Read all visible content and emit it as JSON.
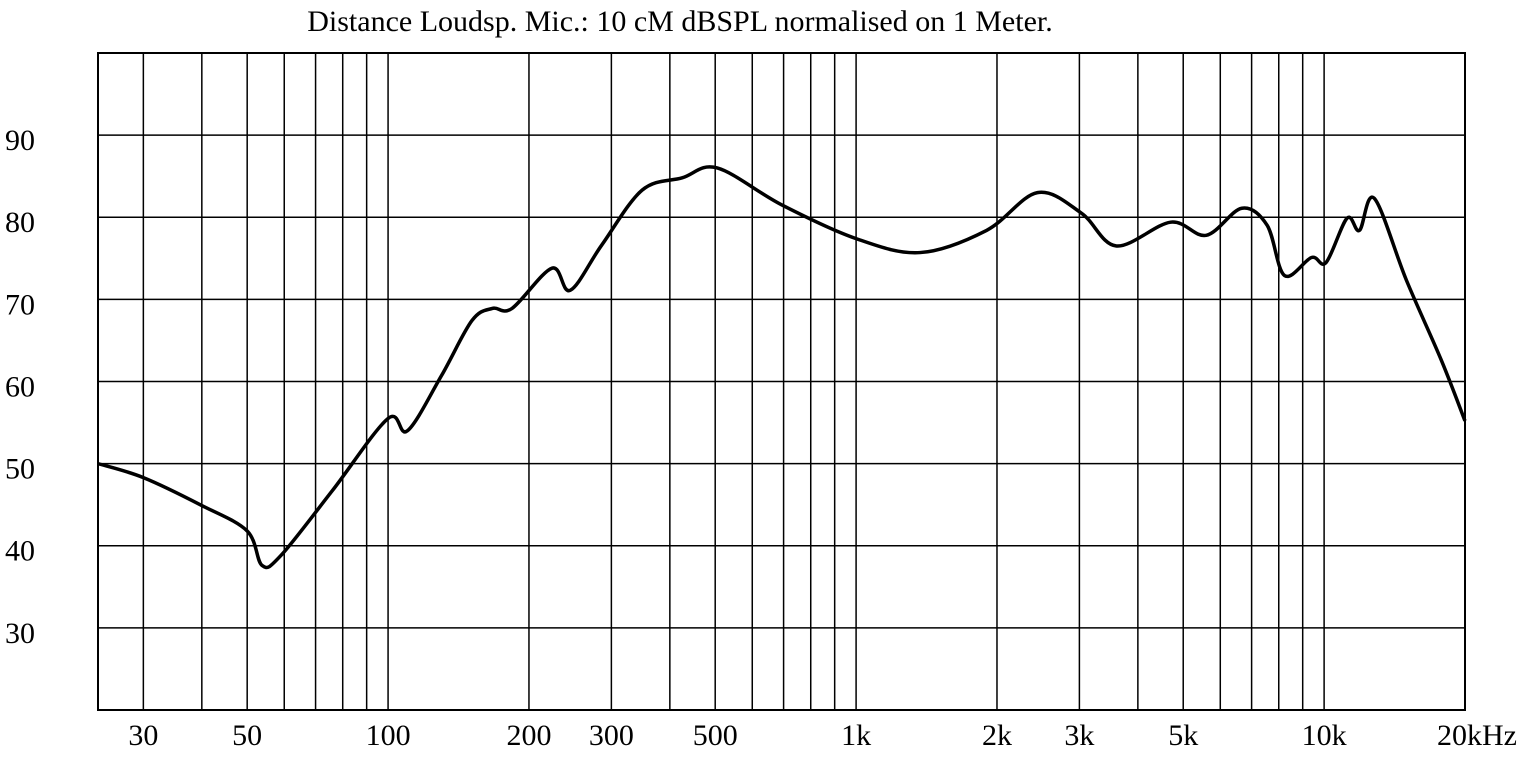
{
  "chart_data": {
    "type": "line",
    "title": "Distance Loudsp. Mic.: 10 cM dBSPL normalised on 1 Meter.",
    "x_scale": "log",
    "grid": true,
    "xlim": [
      24,
      20000
    ],
    "ylim": [
      20,
      100
    ],
    "yticks": [
      30,
      40,
      50,
      60,
      70,
      80,
      90
    ],
    "xticks": [
      30,
      50,
      100,
      200,
      300,
      500,
      {
        "value": 1000,
        "label": "1k"
      },
      {
        "value": 2000,
        "label": "2k"
      },
      {
        "value": 3000,
        "label": "3k"
      },
      {
        "value": 5000,
        "label": "5k"
      },
      {
        "value": 10000,
        "label": "10k"
      },
      {
        "value": 20000,
        "label": "20kHz"
      }
    ],
    "x_minor_grid": [
      40,
      60,
      70,
      80,
      90,
      400,
      600,
      700,
      800,
      900,
      4000,
      6000,
      7000,
      8000,
      9000
    ],
    "series": [
      {
        "color": "#000000",
        "x": [
          24,
          30,
          40,
          50,
          53.8,
          59,
          76,
          100,
          110,
          130,
          151,
          167,
          184,
          224,
          245,
          286,
          349,
          425,
          505,
          694,
          1000,
          1370,
          1900,
          2440,
          3030,
          3600,
          4700,
          5600,
          6670,
          7560,
          8230,
          9400,
          10100,
          11200,
          11900,
          12800,
          15000,
          17800,
          20000
        ],
        "values": [
          50,
          48.3,
          44.9,
          41.8,
          37.6,
          38.8,
          46.7,
          55.5,
          54,
          60.7,
          67.4,
          68.9,
          68.9,
          73.8,
          71.1,
          76.6,
          83.3,
          84.8,
          86,
          81.5,
          77.4,
          75.7,
          78.4,
          83,
          80.5,
          76.5,
          79.4,
          77.8,
          81.1,
          79,
          72.9,
          75.1,
          74.5,
          79.9,
          78.4,
          82.3,
          72.3,
          62.6,
          55.2
        ]
      }
    ]
  }
}
